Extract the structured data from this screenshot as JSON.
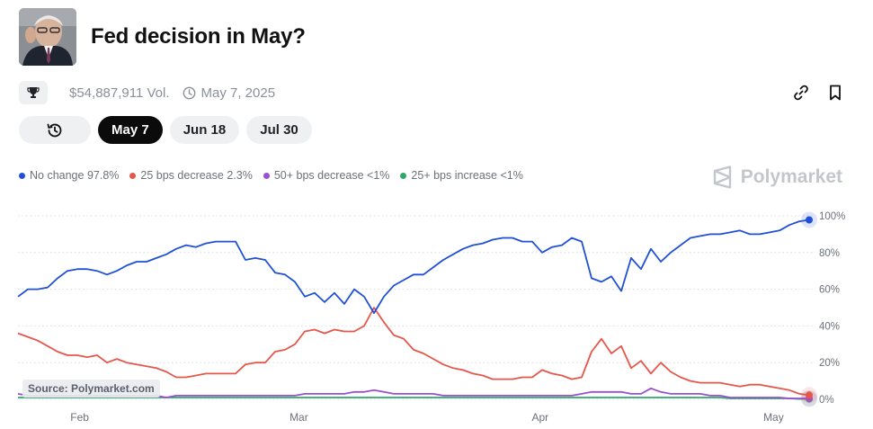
{
  "header": {
    "title": "Fed decision in May?"
  },
  "meta": {
    "volume": "$54,887,911 Vol.",
    "date": "May 7, 2025"
  },
  "tabs": [
    {
      "label": "May 7",
      "active": true
    },
    {
      "label": "Jun 18",
      "active": false
    },
    {
      "label": "Jul 30",
      "active": false
    }
  ],
  "icons": {
    "trophy": "trophy-icon",
    "clock": "clock-icon",
    "link": "link-icon",
    "bookmark": "bookmark-icon",
    "history": "history-icon",
    "brand": "polymarket-logo-icon"
  },
  "brand": "Polymarket",
  "source": "Source: Polymarket.com",
  "legend": [
    {
      "name": "No change",
      "value": "97.8%",
      "color": "#2050d6"
    },
    {
      "name": "25 bps decrease",
      "value": "2.3%",
      "color": "#e5564b"
    },
    {
      "name": "50+ bps decrease",
      "value": "<1%",
      "color": "#9b4fd0"
    },
    {
      "name": "25+ bps increase",
      "value": "<1%",
      "color": "#2ea86a"
    }
  ],
  "chart_data": {
    "type": "line",
    "x_ticks": [
      "Feb",
      "Mar",
      "Apr",
      "May"
    ],
    "y_ticks": [
      "0%",
      "20%",
      "40%",
      "60%",
      "80%",
      "100%"
    ],
    "ylim": [
      0,
      100
    ],
    "grid": true,
    "legend_placement": "top-left",
    "series": [
      {
        "name": "No change",
        "color": "#2050d6",
        "values": [
          56,
          60,
          60,
          61,
          66,
          70,
          71,
          71,
          70,
          68,
          70,
          73,
          75,
          75,
          77,
          79,
          82,
          84,
          83,
          85,
          86,
          86,
          86,
          76,
          77,
          76,
          69,
          68,
          64,
          56,
          58,
          53,
          58,
          52,
          60,
          56,
          47,
          56,
          62,
          65,
          68,
          68,
          72,
          76,
          79,
          82,
          84,
          85,
          87,
          88,
          88,
          86,
          86,
          80,
          83,
          84,
          88,
          86,
          66,
          64,
          67,
          59,
          77,
          71,
          82,
          75,
          80,
          84,
          88,
          89,
          90,
          90,
          91,
          92,
          90,
          90,
          91,
          92,
          95,
          97,
          97.8
        ]
      },
      {
        "name": "25 bps decrease",
        "color": "#e5564b",
        "values": [
          36,
          34,
          32,
          29,
          26,
          24,
          24,
          23,
          24,
          20,
          22,
          20,
          19,
          18,
          17,
          15,
          12,
          12,
          13,
          14,
          14,
          14,
          14,
          19,
          20,
          20,
          26,
          27,
          30,
          37,
          38,
          36,
          38,
          37,
          37,
          40,
          50,
          42,
          35,
          33,
          27,
          25,
          22,
          19,
          17,
          16,
          14,
          13,
          11,
          11,
          11,
          12,
          12,
          16,
          14,
          13,
          11,
          12,
          26,
          33,
          25,
          29,
          17,
          21,
          14,
          20,
          15,
          12,
          10,
          9,
          9,
          9,
          8,
          7,
          8,
          8,
          7,
          6,
          5,
          3,
          2.3
        ]
      },
      {
        "name": "50+ bps decrease",
        "color": "#9b4fd0",
        "values": [
          3,
          2,
          2,
          2,
          2,
          2,
          2,
          2,
          2,
          2,
          2,
          2,
          2,
          2,
          2,
          1,
          2,
          2,
          2,
          2,
          2,
          2,
          2,
          2,
          2,
          2,
          2,
          2,
          2,
          3,
          3,
          3,
          3,
          3,
          4,
          4,
          5,
          4,
          3,
          3,
          3,
          3,
          3,
          2,
          2,
          2,
          2,
          2,
          2,
          2,
          2,
          2,
          2,
          2,
          2,
          2,
          2,
          3,
          4,
          4,
          4,
          4,
          3,
          3,
          6,
          4,
          3,
          3,
          3,
          3,
          2,
          2,
          1,
          1,
          1,
          1,
          1,
          1,
          0.5,
          0.5,
          0.5
        ]
      },
      {
        "name": "25+ bps increase",
        "color": "#2ea86a",
        "values": [
          1,
          1,
          1,
          1,
          1,
          1,
          1,
          1,
          1,
          1,
          1,
          1,
          1,
          1,
          1,
          1,
          1,
          1,
          1,
          1,
          1,
          1,
          1,
          1,
          1,
          1,
          1,
          1,
          1,
          1,
          1,
          1,
          1,
          1,
          1,
          1,
          1,
          1,
          1,
          1,
          1,
          1,
          1,
          1,
          1,
          1,
          1,
          1,
          1,
          1,
          1,
          1,
          1,
          1,
          1,
          1,
          1,
          1,
          1,
          1,
          1,
          1,
          1,
          1,
          1,
          1,
          1,
          1,
          1,
          1,
          1,
          1,
          0.5,
          0.5,
          0.5,
          0.5,
          0.5,
          0.5,
          0.5,
          0.2,
          0.2
        ]
      }
    ]
  }
}
